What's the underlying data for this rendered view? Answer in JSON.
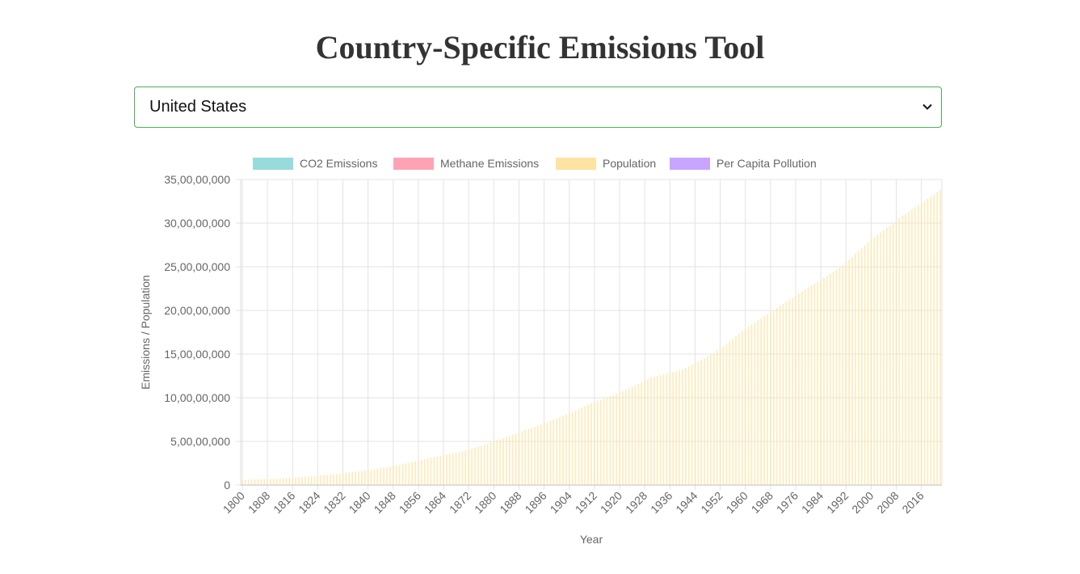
{
  "page": {
    "title": "Country-Specific Emissions Tool"
  },
  "selector": {
    "selected": "United States",
    "icon": "chevron-down-icon"
  },
  "colors": {
    "co2": "#97dbdc",
    "methane": "#ffa3b4",
    "population": "#ffe3a0",
    "per_capita": "#c8a6ff",
    "accent_border": "#4caf50",
    "title": "#333333"
  },
  "chart_data": {
    "type": "bar",
    "xlabel": "Year",
    "ylabel": "Emissions / Population",
    "ylim": [
      0,
      350000000
    ],
    "y_ticks": [
      0,
      50000000,
      100000000,
      150000000,
      200000000,
      250000000,
      300000000,
      350000000
    ],
    "y_tick_labels": [
      "0",
      "5,00,00,000",
      "10,00,00,000",
      "15,00,00,000",
      "20,00,00,000",
      "25,00,00,000",
      "30,00,00,000",
      "35,00,00,000"
    ],
    "x_start": 1800,
    "x_end": 2022,
    "x_tick_labels": [
      "1800",
      "1808",
      "1816",
      "1824",
      "1832",
      "1840",
      "1848",
      "1856",
      "1864",
      "1872",
      "1880",
      "1888",
      "1896",
      "1904",
      "1912",
      "1920",
      "1928",
      "1936",
      "1944",
      "1952",
      "1960",
      "1968",
      "1976",
      "1984",
      "1992",
      "2000",
      "2008",
      "2016"
    ],
    "grid": true,
    "legend_placement": "top-center",
    "legend": [
      "CO2 Emissions",
      "Methane Emissions",
      "Population",
      "Per Capita Pollution"
    ],
    "series": [
      {
        "name": "CO2 Emissions",
        "values": []
      },
      {
        "name": "Methane Emissions",
        "values": []
      },
      {
        "name": "Population",
        "anchors": [
          [
            1800,
            6000000
          ],
          [
            1810,
            7200000
          ],
          [
            1820,
            9600000
          ],
          [
            1830,
            12900000
          ],
          [
            1840,
            17100000
          ],
          [
            1850,
            23200000
          ],
          [
            1860,
            31400000
          ],
          [
            1870,
            38600000
          ],
          [
            1880,
            50200000
          ],
          [
            1890,
            63000000
          ],
          [
            1900,
            76200000
          ],
          [
            1910,
            92200000
          ],
          [
            1920,
            106000000
          ],
          [
            1930,
            123200000
          ],
          [
            1940,
            132200000
          ],
          [
            1950,
            151300000
          ],
          [
            1960,
            179300000
          ],
          [
            1970,
            203200000
          ],
          [
            1980,
            226500000
          ],
          [
            1990,
            248700000
          ],
          [
            2000,
            281400000
          ],
          [
            2010,
            308700000
          ],
          [
            2022,
            338000000
          ]
        ]
      },
      {
        "name": "Per Capita Pollution",
        "values": []
      }
    ]
  }
}
